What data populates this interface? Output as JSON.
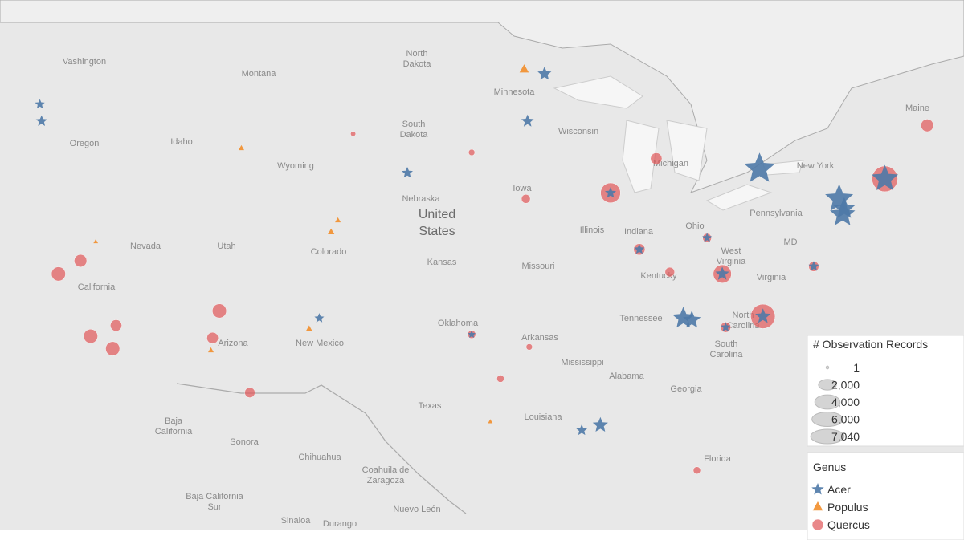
{
  "places": [
    [
      "Vashington"
    ],
    [
      "Montana"
    ],
    [
      "North",
      "Dakota"
    ],
    [
      "Minnesota"
    ],
    [
      "Oregon"
    ],
    [
      "Idaho"
    ],
    [
      "South",
      "Dakota"
    ],
    [
      "Wisconsin"
    ],
    [
      "Wyoming"
    ],
    [
      "Michigan"
    ],
    [
      "Nebraska"
    ],
    [
      "Iowa"
    ],
    [
      "New York"
    ],
    [
      "Pennsylvania"
    ],
    [
      "Nevada"
    ],
    [
      "Utah"
    ],
    [
      "Colorado"
    ],
    [
      "Illinois"
    ],
    [
      "Indiana"
    ],
    [
      "Ohio"
    ],
    [
      "Kansas"
    ],
    [
      "Missouri"
    ],
    [
      "West",
      "Virginia"
    ],
    [
      "Virginia"
    ],
    [
      "Kentucky"
    ],
    [
      "California"
    ],
    [
      "Oklahoma"
    ],
    [
      "Tennessee"
    ],
    [
      "North",
      "Carolina"
    ],
    [
      "Arizona"
    ],
    [
      "New Mexico"
    ],
    [
      "Arkansas"
    ],
    [
      "South",
      "Carolina"
    ],
    [
      "Mississippi"
    ],
    [
      "Alabama"
    ],
    [
      "Georgia"
    ],
    [
      "Texas"
    ],
    [
      "Louisiana"
    ],
    [
      "Baja",
      "California"
    ],
    [
      "Sonora"
    ],
    [
      "Chihuahua"
    ],
    [
      "Coahuila de",
      "Zaragoza"
    ],
    [
      "Florida"
    ],
    [
      "Baja California",
      "Sur"
    ],
    [
      "Nuevo León"
    ],
    [
      "Sinaloa"
    ],
    [
      "Durango"
    ],
    [
      "Maine"
    ],
    [
      "MD"
    ],
    [
      "United",
      "States"
    ]
  ],
  "size_legend": {
    "title": "# Observation Records",
    "ticks": [
      1,
      {
        "value": 2000,
        "label": "2,000"
      },
      {
        "value": 4000,
        "label": "4,000"
      },
      {
        "value": 6000,
        "label": "6,000"
      },
      {
        "value": 7040,
        "label": "7,040"
      }
    ]
  },
  "genus_legend": {
    "title": "Genus",
    "items": [
      {
        "name": "Acer",
        "color": "#4e79a7"
      },
      {
        "name": "Populus",
        "color": "#f28e2b"
      },
      {
        "name": "Quercus",
        "color": "#e15759"
      }
    ]
  },
  "observations": [
    {
      "genus": "Quercus",
      "lon": -78.6,
      "lat": 35.4,
      "records": 4500
    },
    {
      "genus": "Acer",
      "lon": -78.6,
      "lat": 35.4,
      "records": 1500
    },
    {
      "genus": "Quercus",
      "lon": -71.4,
      "lat": 42.6,
      "records": 5000
    },
    {
      "genus": "Acer",
      "lon": -71.4,
      "lat": 42.6,
      "records": 4500
    },
    {
      "genus": "Quercus",
      "lon": -87.6,
      "lat": 41.9,
      "records": 3000
    },
    {
      "genus": "Acer",
      "lon": -87.6,
      "lat": 41.9,
      "records": 800
    },
    {
      "genus": "Quercus",
      "lon": -68.9,
      "lat": 45.2,
      "records": 1200
    },
    {
      "genus": "Quercus",
      "lon": -81.0,
      "lat": 37.7,
      "records": 2500
    },
    {
      "genus": "Acer",
      "lon": -81.0,
      "lat": 37.7,
      "records": 1200
    },
    {
      "genus": "Quercus",
      "lon": -120.2,
      "lat": 37.7,
      "records": 1500
    },
    {
      "genus": "Quercus",
      "lon": -118.9,
      "lat": 38.4,
      "records": 1200
    },
    {
      "genus": "Quercus",
      "lon": -118.3,
      "lat": 34.3,
      "records": 1500
    },
    {
      "genus": "Quercus",
      "lon": -117.0,
      "lat": 33.6,
      "records": 1500
    },
    {
      "genus": "Quercus",
      "lon": -116.8,
      "lat": 34.9,
      "records": 1000
    },
    {
      "genus": "Quercus",
      "lon": -110.7,
      "lat": 35.7,
      "records": 1500
    },
    {
      "genus": "Quercus",
      "lon": -111.1,
      "lat": 34.2,
      "records": 1000
    },
    {
      "genus": "Quercus",
      "lon": -108.9,
      "lat": 31.1,
      "records": 800
    },
    {
      "genus": "Quercus",
      "lon": -95.8,
      "lat": 34.4,
      "records": 500
    },
    {
      "genus": "Quercus",
      "lon": -92.6,
      "lat": 41.6,
      "records": 600
    },
    {
      "genus": "Quercus",
      "lon": -84.9,
      "lat": 43.6,
      "records": 1000
    },
    {
      "genus": "Quercus",
      "lon": -84.1,
      "lat": 37.8,
      "records": 700
    },
    {
      "genus": "Quercus",
      "lon": -85.9,
      "lat": 39.0,
      "records": 1000
    },
    {
      "genus": "Quercus",
      "lon": -81.9,
      "lat": 39.6,
      "records": 600
    },
    {
      "genus": "Quercus",
      "lon": -82.5,
      "lat": 26.5,
      "records": 400
    },
    {
      "genus": "Quercus",
      "lon": -75.6,
      "lat": 38.1,
      "records": 800
    },
    {
      "genus": "Quercus",
      "lon": -94.1,
      "lat": 31.9,
      "records": 400
    },
    {
      "genus": "Quercus",
      "lon": -92.4,
      "lat": 33.7,
      "records": 300
    },
    {
      "genus": "Quercus",
      "lon": -80.8,
      "lat": 34.8,
      "records": 800
    },
    {
      "genus": "Quercus",
      "lon": -95.8,
      "lat": 43.9,
      "records": 300
    },
    {
      "genus": "Quercus",
      "lon": -102.8,
      "lat": 44.8,
      "records": 200
    },
    {
      "genus": "Acer",
      "lon": -78.8,
      "lat": 43.1,
      "records": 6000
    },
    {
      "genus": "Acer",
      "lon": -74.1,
      "lat": 41.6,
      "records": 5000
    },
    {
      "genus": "Acer",
      "lon": -73.9,
      "lat": 40.8,
      "records": 4000
    },
    {
      "genus": "Acer",
      "lon": -73.8,
      "lat": 41.1,
      "records": 3000
    },
    {
      "genus": "Acer",
      "lon": -83.3,
      "lat": 35.3,
      "records": 3000
    },
    {
      "genus": "Acer",
      "lon": -82.8,
      "lat": 35.2,
      "records": 2000
    },
    {
      "genus": "Acer",
      "lon": -91.5,
      "lat": 47.6,
      "records": 1200
    },
    {
      "genus": "Acer",
      "lon": -92.5,
      "lat": 45.4,
      "records": 1000
    },
    {
      "genus": "Acer",
      "lon": -99.6,
      "lat": 42.9,
      "records": 800
    },
    {
      "genus": "Acer",
      "lon": -121.3,
      "lat": 46.2,
      "records": 600
    },
    {
      "genus": "Acer",
      "lon": -121.2,
      "lat": 45.4,
      "records": 800
    },
    {
      "genus": "Acer",
      "lon": -104.8,
      "lat": 35.3,
      "records": 600
    },
    {
      "genus": "Acer",
      "lon": -95.8,
      "lat": 34.4,
      "records": 400
    },
    {
      "genus": "Acer",
      "lon": -85.9,
      "lat": 39.0,
      "records": 700
    },
    {
      "genus": "Acer",
      "lon": -81.9,
      "lat": 39.6,
      "records": 600
    },
    {
      "genus": "Acer",
      "lon": -88.2,
      "lat": 29.2,
      "records": 1500
    },
    {
      "genus": "Acer",
      "lon": -89.3,
      "lat": 28.9,
      "records": 800
    },
    {
      "genus": "Acer",
      "lon": -75.6,
      "lat": 38.1,
      "records": 700
    },
    {
      "genus": "Acer",
      "lon": -80.8,
      "lat": 34.8,
      "records": 600
    },
    {
      "genus": "Populus",
      "lon": -92.7,
      "lat": 47.8,
      "records": 800
    },
    {
      "genus": "Populus",
      "lon": -111.2,
      "lat": 33.5,
      "records": 300
    },
    {
      "genus": "Populus",
      "lon": -104.1,
      "lat": 39.9,
      "records": 400
    },
    {
      "genus": "Populus",
      "lon": -103.7,
      "lat": 40.5,
      "records": 300
    },
    {
      "genus": "Populus",
      "lon": -109.4,
      "lat": 44.1,
      "records": 300
    },
    {
      "genus": "Populus",
      "lon": -105.4,
      "lat": 34.7,
      "records": 400
    },
    {
      "genus": "Populus",
      "lon": -118.0,
      "lat": 39.4,
      "records": 200
    },
    {
      "genus": "Populus",
      "lon": -94.7,
      "lat": 29.4,
      "records": 200
    }
  ]
}
